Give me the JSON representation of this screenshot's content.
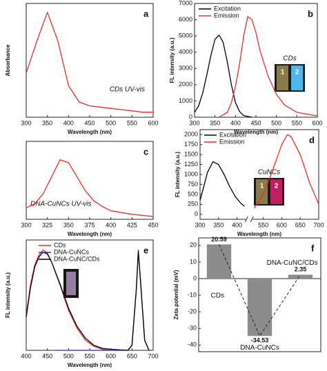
{
  "chart_data": [
    {
      "type": "line",
      "panel": "a",
      "ylabel": "Absorbance",
      "xlabel": "Wavelength (nm)",
      "annotation": "CDs UV-vis",
      "xlim": [
        300,
        600
      ],
      "xticks": [
        300,
        350,
        400,
        450,
        500,
        550,
        600
      ],
      "ylim": [
        0,
        0.9
      ],
      "series": [
        {
          "color": "#e0302a",
          "x": [
            300,
            325,
            350,
            375,
            400,
            425,
            450,
            475,
            500,
            525,
            550,
            575,
            600
          ],
          "values": [
            0.35,
            0.6,
            0.83,
            0.6,
            0.25,
            0.12,
            0.09,
            0.08,
            0.07,
            0.06,
            0.05,
            0.04,
            0.04
          ]
        }
      ]
    },
    {
      "type": "line",
      "panel": "b",
      "ylabel": "FL intensity (a.u.)",
      "xlabel": "Wavelength (nm)",
      "legend": "upper left",
      "inset": {
        "title": "CDs",
        "labels": [
          "1",
          "2"
        ]
      },
      "xlim": [
        300,
        600
      ],
      "xticks": [
        300,
        350,
        400,
        450,
        500,
        550,
        600
      ],
      "ylim": [
        0,
        7000
      ],
      "yticks": [
        0,
        1000,
        2000,
        3000,
        4000,
        5000,
        6000,
        7000
      ],
      "series": [
        {
          "name": "Excitation",
          "color": "#000000",
          "x": [
            300,
            310,
            320,
            330,
            340,
            350,
            360,
            370,
            380,
            390,
            400,
            410,
            420,
            440
          ],
          "values": [
            300,
            700,
            1500,
            2600,
            3800,
            4800,
            5050,
            4600,
            3400,
            2000,
            900,
            350,
            100,
            0
          ]
        },
        {
          "name": "Emission",
          "color": "#e0302a",
          "x": [
            360,
            380,
            390,
            400,
            410,
            420,
            430,
            440,
            450,
            460,
            480,
            500,
            520,
            550,
            600
          ],
          "values": [
            0,
            300,
            900,
            1900,
            3300,
            5000,
            6200,
            6000,
            5200,
            4100,
            2500,
            1400,
            750,
            300,
            80
          ]
        }
      ]
    },
    {
      "type": "line",
      "panel": "c",
      "xlabel": "Wavelength (nm)",
      "annotation": "DNA-CuNCs UV-vis",
      "xlim": [
        300,
        450
      ],
      "xticks": [
        300,
        325,
        350,
        375,
        400,
        425,
        450
      ],
      "ylim": [
        0,
        0.55
      ],
      "series": [
        {
          "color": "#e0302a",
          "x": [
            300,
            310,
            320,
            330,
            340,
            350,
            360,
            370,
            380,
            390,
            400,
            425,
            450
          ],
          "values": [
            0.08,
            0.11,
            0.18,
            0.3,
            0.42,
            0.4,
            0.3,
            0.2,
            0.13,
            0.09,
            0.06,
            0.035,
            0.02
          ]
        }
      ]
    },
    {
      "type": "line",
      "panel": "d",
      "ylabel": "FL intensity (a.u.)",
      "xlabel": "Wavelength (nm)",
      "legend": "upper left",
      "inset": {
        "title": "CuNCs",
        "labels": [
          "1",
          "2"
        ]
      },
      "xlim": [
        300,
        700
      ],
      "x_break": [
        420,
        525
      ],
      "xticks": [
        300,
        350,
        400,
        550,
        600,
        650,
        700
      ],
      "ylim": [
        -125,
        2125
      ],
      "yticks": [
        0,
        250,
        500,
        750,
        1000,
        1250,
        1500,
        1750,
        2000
      ],
      "series": [
        {
          "name": "Excitation",
          "color": "#000000",
          "x": [
            300,
            310,
            320,
            335,
            350,
            365,
            380,
            395,
            410,
            420
          ],
          "values": [
            350,
            700,
            1050,
            1320,
            1250,
            1000,
            700,
            450,
            280,
            200
          ]
        },
        {
          "name": "Emission",
          "color": "#e0302a",
          "x": [
            525,
            550,
            575,
            600,
            615,
            625,
            650,
            675,
            700
          ],
          "values": [
            150,
            500,
            1100,
            1750,
            2000,
            1950,
            1500,
            800,
            250
          ]
        }
      ]
    },
    {
      "type": "line",
      "panel": "e",
      "ylabel": "FL intensity (a.u.)",
      "xlabel": "Wavelength (nm)",
      "legend": "upper left",
      "xlim": [
        400,
        700
      ],
      "xticks": [
        400,
        450,
        500,
        550,
        600,
        650,
        700
      ],
      "ylim": [
        0,
        1.1
      ],
      "series": [
        {
          "name": "CDs",
          "color": "#e0302a",
          "x": [
            400,
            410,
            420,
            430,
            440,
            450,
            460,
            480,
            500,
            520,
            540,
            560,
            580,
            600
          ],
          "values": [
            0.35,
            0.65,
            0.85,
            0.95,
            1.0,
            0.97,
            0.88,
            0.65,
            0.4,
            0.22,
            0.1,
            0.04,
            0.01,
            0
          ]
        },
        {
          "name": "DNA-CuNCs",
          "color": "#1f2fa8",
          "x": [
            470,
            560,
            640,
            650,
            660,
            665,
            670,
            680,
            690
          ],
          "values": [
            0,
            0,
            0,
            0.05,
            0.6,
            1.0,
            0.7,
            0.1,
            0
          ]
        },
        {
          "name": "DNA-CuNC/CDs",
          "color": "#000000",
          "x": [
            400,
            410,
            420,
            430,
            440,
            450,
            460,
            480,
            500,
            520,
            540,
            560,
            580,
            600,
            640,
            650,
            660,
            665,
            670,
            680,
            690
          ],
          "values": [
            0.33,
            0.62,
            0.83,
            0.93,
            0.98,
            0.96,
            0.88,
            0.66,
            0.42,
            0.24,
            0.12,
            0.05,
            0.02,
            0.01,
            0,
            0.05,
            0.6,
            0.98,
            0.7,
            0.1,
            0
          ]
        }
      ]
    },
    {
      "type": "bar",
      "panel": "f",
      "ylabel": "Zeta potential (mV)",
      "categories": [
        "CDs",
        "DNA-CuNCs",
        "DNA-CuNC/CDs"
      ],
      "values": [
        20.59,
        -34.53,
        2.35
      ],
      "value_labels": [
        "20.59",
        "-34.53",
        "2.35"
      ],
      "color": "#8c8c8c",
      "ylim": [
        -44,
        24.5
      ],
      "yticks": [
        -40,
        -30,
        -20,
        -10,
        0,
        10,
        20
      ]
    }
  ]
}
